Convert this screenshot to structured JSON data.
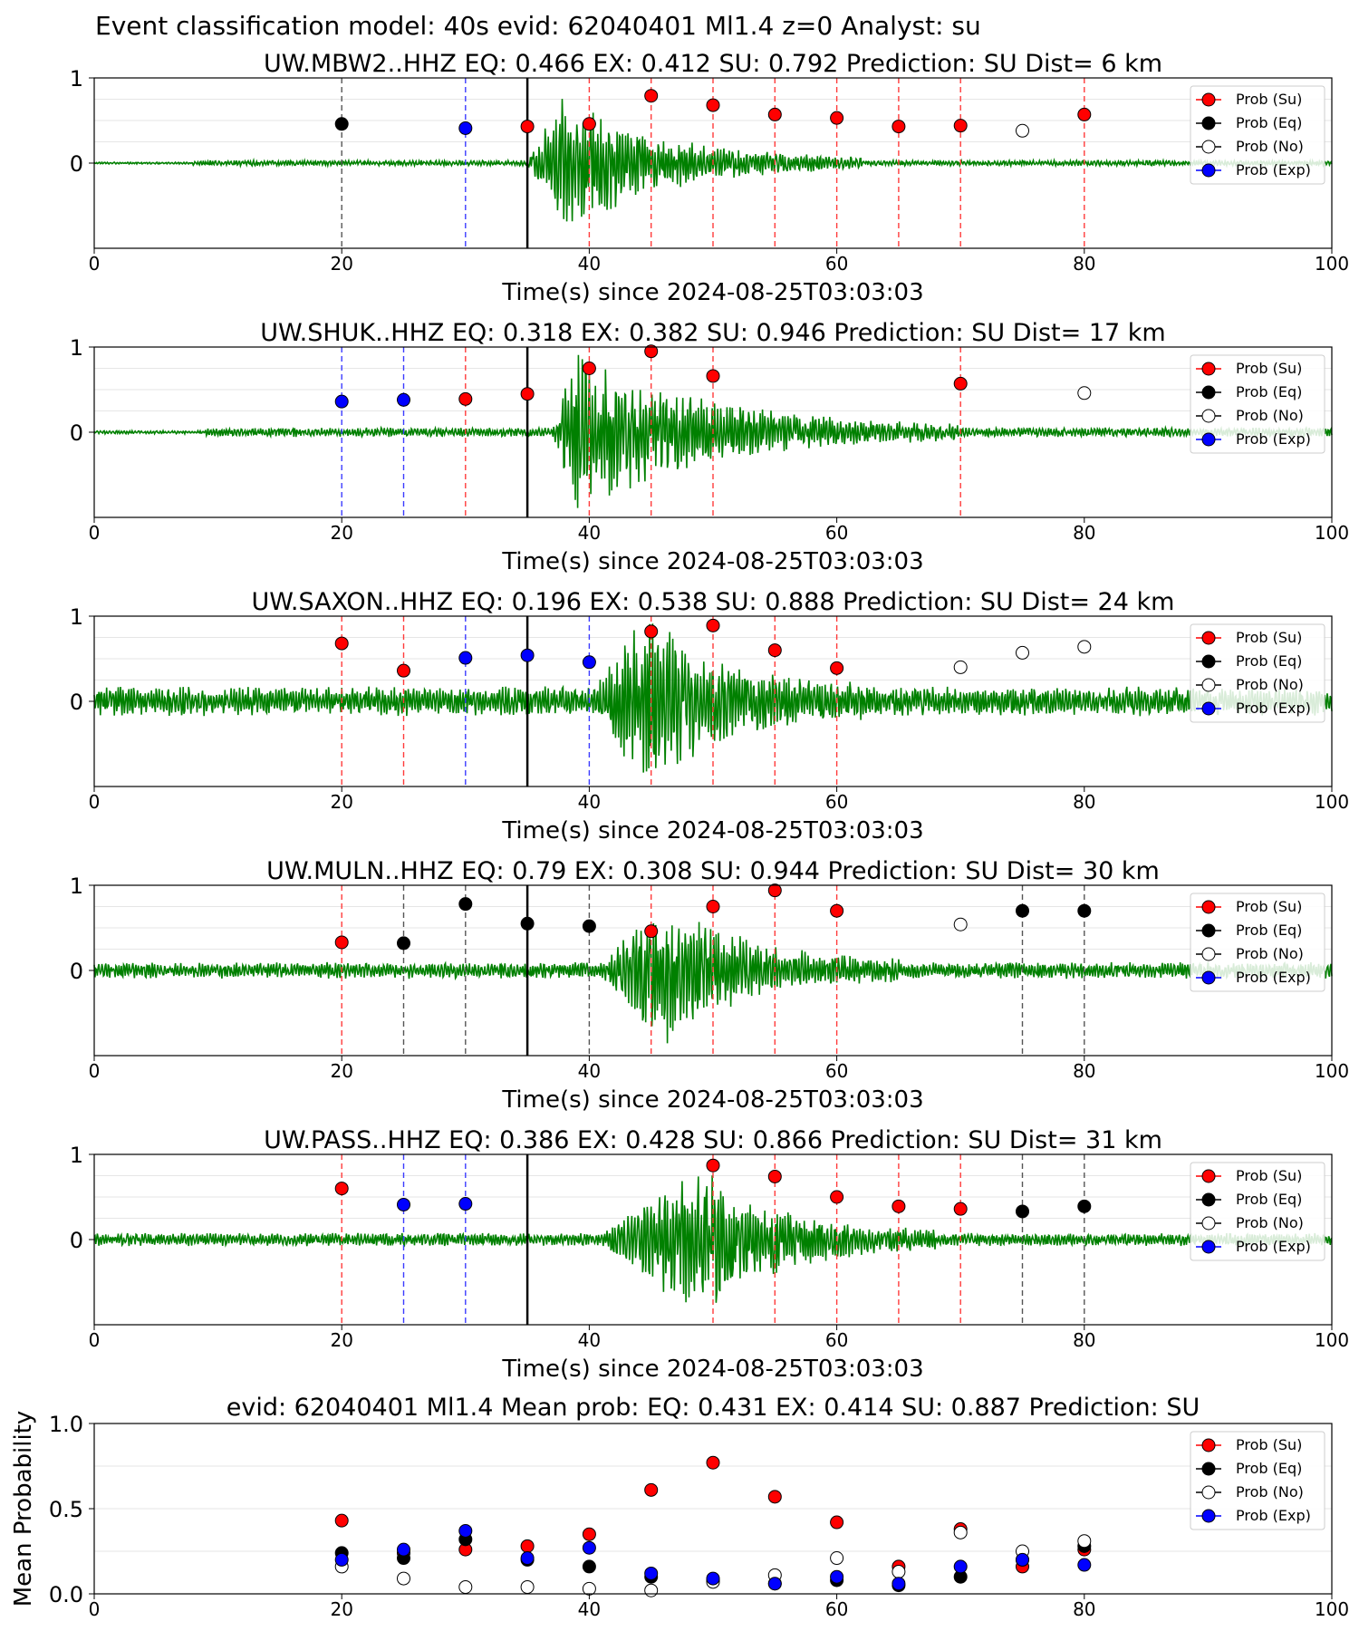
{
  "figure": {
    "suptitle": "Event classification model: 40s evid: 62040401 Ml1.4 z=0 Analyst: su"
  },
  "legend_labels": [
    "Prob (Su)",
    "Prob (Eq)",
    "Prob (No)",
    "Prob (Exp)"
  ],
  "colors": {
    "trace": "#008000",
    "su": "#ff0000",
    "eq": "#000000",
    "no": "#ffffff",
    "exp": "#0000ff",
    "su_line": "#ff3b3b",
    "eq_line": "#555555",
    "exp_line": "#3b3bff"
  },
  "chart_data": [
    {
      "type": "scatter",
      "title": "UW.MBW2..HHZ   EQ: 0.466  EX: 0.412  SU: 0.792   Prediction: SU    Dist= 6 km",
      "xlabel": "Time(s) since 2024-08-25T03:03:03",
      "xlim": [
        0,
        100
      ],
      "ylim": [
        -1,
        1
      ],
      "xticks": [
        "0",
        "20",
        "40",
        "60",
        "80",
        "100"
      ],
      "yticks": [
        "1",
        "0"
      ],
      "origin_time": 35,
      "trace": {
        "noise_start": 8,
        "burst_start": 35,
        "burst_peak": 38,
        "burst_end": 62,
        "noise_amp": 0.03,
        "burst_amp": 0.75,
        "seed": 3
      },
      "points": [
        {
          "t": 20,
          "p": 0.46,
          "cls": "eq"
        },
        {
          "t": 30,
          "p": 0.41,
          "cls": "exp"
        },
        {
          "t": 35,
          "p": 0.43,
          "cls": "su"
        },
        {
          "t": 40,
          "p": 0.46,
          "cls": "su"
        },
        {
          "t": 45,
          "p": 0.79,
          "cls": "su"
        },
        {
          "t": 50,
          "p": 0.68,
          "cls": "su"
        },
        {
          "t": 55,
          "p": 0.57,
          "cls": "su"
        },
        {
          "t": 60,
          "p": 0.53,
          "cls": "su"
        },
        {
          "t": 65,
          "p": 0.43,
          "cls": "su"
        },
        {
          "t": 70,
          "p": 0.44,
          "cls": "su"
        },
        {
          "t": 75,
          "p": 0.38,
          "cls": "no"
        },
        {
          "t": 80,
          "p": 0.57,
          "cls": "su"
        }
      ],
      "vlines": [
        {
          "t": 20,
          "cls": "eq"
        },
        {
          "t": 30,
          "cls": "exp"
        },
        {
          "t": 40,
          "cls": "su"
        },
        {
          "t": 45,
          "cls": "su"
        },
        {
          "t": 50,
          "cls": "su"
        },
        {
          "t": 55,
          "cls": "su"
        },
        {
          "t": 60,
          "cls": "su"
        },
        {
          "t": 65,
          "cls": "su"
        },
        {
          "t": 70,
          "cls": "su"
        },
        {
          "t": 80,
          "cls": "su"
        }
      ],
      "legend": "top-right"
    },
    {
      "type": "scatter",
      "title": "UW.SHUK..HHZ   EQ: 0.318  EX: 0.382  SU: 0.946   Prediction: SU    Dist= 17 km",
      "xlabel": "Time(s) since 2024-08-25T03:03:03",
      "xlim": [
        0,
        100
      ],
      "ylim": [
        -1,
        1
      ],
      "xticks": [
        "0",
        "20",
        "40",
        "60",
        "80",
        "100"
      ],
      "yticks": [
        "1",
        "0"
      ],
      "origin_time": 35,
      "trace": {
        "noise_start": 9,
        "burst_start": 37,
        "burst_peak": 39,
        "burst_end": 70,
        "noise_amp": 0.05,
        "burst_amp": 0.85,
        "seed": 7
      },
      "points": [
        {
          "t": 20,
          "p": 0.36,
          "cls": "exp"
        },
        {
          "t": 25,
          "p": 0.38,
          "cls": "exp"
        },
        {
          "t": 30,
          "p": 0.39,
          "cls": "su"
        },
        {
          "t": 35,
          "p": 0.45,
          "cls": "su"
        },
        {
          "t": 40,
          "p": 0.75,
          "cls": "su"
        },
        {
          "t": 45,
          "p": 0.95,
          "cls": "su"
        },
        {
          "t": 50,
          "p": 0.66,
          "cls": "su"
        },
        {
          "t": 70,
          "p": 0.57,
          "cls": "su"
        },
        {
          "t": 80,
          "p": 0.46,
          "cls": "no"
        }
      ],
      "vlines": [
        {
          "t": 20,
          "cls": "exp"
        },
        {
          "t": 25,
          "cls": "exp"
        },
        {
          "t": 30,
          "cls": "su"
        },
        {
          "t": 40,
          "cls": "su"
        },
        {
          "t": 45,
          "cls": "su"
        },
        {
          "t": 50,
          "cls": "su"
        },
        {
          "t": 70,
          "cls": "su"
        }
      ],
      "legend": "top-right"
    },
    {
      "type": "scatter",
      "title": "UW.SAXON..HHZ   EQ: 0.196  EX: 0.538  SU: 0.888   Prediction: SU    Dist= 24 km",
      "xlabel": "Time(s) since 2024-08-25T03:03:03",
      "xlim": [
        0,
        100
      ],
      "ylim": [
        -1,
        1
      ],
      "xticks": [
        "0",
        "20",
        "40",
        "60",
        "80",
        "100"
      ],
      "yticks": [
        "1",
        "0"
      ],
      "origin_time": 35,
      "trace": {
        "noise_start": 0,
        "burst_start": 40,
        "burst_peak": 45,
        "burst_end": 62,
        "noise_amp": 0.16,
        "burst_amp": 0.85,
        "seed": 11
      },
      "points": [
        {
          "t": 20,
          "p": 0.68,
          "cls": "su"
        },
        {
          "t": 25,
          "p": 0.36,
          "cls": "su"
        },
        {
          "t": 30,
          "p": 0.51,
          "cls": "exp"
        },
        {
          "t": 35,
          "p": 0.54,
          "cls": "exp"
        },
        {
          "t": 40,
          "p": 0.46,
          "cls": "exp"
        },
        {
          "t": 45,
          "p": 0.82,
          "cls": "su"
        },
        {
          "t": 50,
          "p": 0.89,
          "cls": "su"
        },
        {
          "t": 55,
          "p": 0.6,
          "cls": "su"
        },
        {
          "t": 60,
          "p": 0.39,
          "cls": "su"
        },
        {
          "t": 70,
          "p": 0.4,
          "cls": "no"
        },
        {
          "t": 75,
          "p": 0.57,
          "cls": "no"
        },
        {
          "t": 80,
          "p": 0.64,
          "cls": "no"
        }
      ],
      "vlines": [
        {
          "t": 20,
          "cls": "su"
        },
        {
          "t": 25,
          "cls": "su"
        },
        {
          "t": 30,
          "cls": "exp"
        },
        {
          "t": 40,
          "cls": "exp"
        },
        {
          "t": 45,
          "cls": "su"
        },
        {
          "t": 50,
          "cls": "su"
        },
        {
          "t": 55,
          "cls": "su"
        },
        {
          "t": 60,
          "cls": "su"
        }
      ],
      "legend": "top-right"
    },
    {
      "type": "scatter",
      "title": "UW.MULN..HHZ   EQ: 0.79  EX: 0.308  SU: 0.944   Prediction: SU    Dist= 30 km",
      "xlabel": "Time(s) since 2024-08-25T03:03:03",
      "xlim": [
        0,
        100
      ],
      "ylim": [
        -1,
        1
      ],
      "xticks": [
        "0",
        "20",
        "40",
        "60",
        "80",
        "100"
      ],
      "yticks": [
        "1",
        "0"
      ],
      "origin_time": 35,
      "trace": {
        "noise_start": 0,
        "burst_start": 41,
        "burst_peak": 46,
        "burst_end": 65,
        "noise_amp": 0.09,
        "burst_amp": 0.75,
        "seed": 19
      },
      "points": [
        {
          "t": 20,
          "p": 0.33,
          "cls": "su"
        },
        {
          "t": 25,
          "p": 0.32,
          "cls": "eq"
        },
        {
          "t": 30,
          "p": 0.78,
          "cls": "eq"
        },
        {
          "t": 35,
          "p": 0.55,
          "cls": "eq"
        },
        {
          "t": 40,
          "p": 0.52,
          "cls": "eq"
        },
        {
          "t": 45,
          "p": 0.46,
          "cls": "su"
        },
        {
          "t": 50,
          "p": 0.75,
          "cls": "su"
        },
        {
          "t": 55,
          "p": 0.94,
          "cls": "su"
        },
        {
          "t": 60,
          "p": 0.7,
          "cls": "su"
        },
        {
          "t": 70,
          "p": 0.54,
          "cls": "no"
        },
        {
          "t": 75,
          "p": 0.7,
          "cls": "eq"
        },
        {
          "t": 80,
          "p": 0.7,
          "cls": "eq"
        }
      ],
      "vlines": [
        {
          "t": 20,
          "cls": "su"
        },
        {
          "t": 25,
          "cls": "eq"
        },
        {
          "t": 30,
          "cls": "eq"
        },
        {
          "t": 40,
          "cls": "eq"
        },
        {
          "t": 45,
          "cls": "su"
        },
        {
          "t": 50,
          "cls": "su"
        },
        {
          "t": 55,
          "cls": "su"
        },
        {
          "t": 60,
          "cls": "su"
        },
        {
          "t": 75,
          "cls": "eq"
        },
        {
          "t": 80,
          "cls": "eq"
        }
      ],
      "legend": "top-right"
    },
    {
      "type": "scatter",
      "title": "UW.PASS..HHZ   EQ: 0.386  EX: 0.428  SU: 0.866   Prediction: SU    Dist= 31 km",
      "xlabel": "Time(s) since 2024-08-25T03:03:03",
      "xlim": [
        0,
        100
      ],
      "ylim": [
        -1,
        1
      ],
      "xticks": [
        "0",
        "20",
        "40",
        "60",
        "80",
        "100"
      ],
      "yticks": [
        "1",
        "0"
      ],
      "origin_time": 35,
      "trace": {
        "noise_start": 0,
        "burst_start": 41,
        "burst_peak": 49,
        "burst_end": 68,
        "noise_amp": 0.07,
        "burst_amp": 0.8,
        "seed": 23
      },
      "points": [
        {
          "t": 20,
          "p": 0.6,
          "cls": "su"
        },
        {
          "t": 25,
          "p": 0.41,
          "cls": "exp"
        },
        {
          "t": 30,
          "p": 0.42,
          "cls": "exp"
        },
        {
          "t": 50,
          "p": 0.87,
          "cls": "su"
        },
        {
          "t": 55,
          "p": 0.74,
          "cls": "su"
        },
        {
          "t": 60,
          "p": 0.5,
          "cls": "su"
        },
        {
          "t": 65,
          "p": 0.39,
          "cls": "su"
        },
        {
          "t": 70,
          "p": 0.36,
          "cls": "su"
        },
        {
          "t": 75,
          "p": 0.33,
          "cls": "eq"
        },
        {
          "t": 80,
          "p": 0.39,
          "cls": "eq"
        }
      ],
      "vlines": [
        {
          "t": 20,
          "cls": "su"
        },
        {
          "t": 25,
          "cls": "exp"
        },
        {
          "t": 30,
          "cls": "exp"
        },
        {
          "t": 50,
          "cls": "su"
        },
        {
          "t": 55,
          "cls": "su"
        },
        {
          "t": 60,
          "cls": "su"
        },
        {
          "t": 65,
          "cls": "su"
        },
        {
          "t": 70,
          "cls": "su"
        },
        {
          "t": 75,
          "cls": "eq"
        },
        {
          "t": 80,
          "cls": "eq"
        }
      ],
      "legend": "top-right"
    },
    {
      "type": "scatter",
      "title": "evid: 62040401   Ml1.4    Mean prob:    EQ: 0.431   EX: 0.414   SU: 0.887    Prediction: SU",
      "xlabel": "",
      "ylabel": "Mean Probability",
      "xlim": [
        0,
        100
      ],
      "ylim": [
        0,
        1
      ],
      "xticks": [
        "0",
        "20",
        "40",
        "60",
        "80",
        "100"
      ],
      "yticks": [
        "1.0",
        "0.5",
        "0.0"
      ],
      "x": [
        20,
        25,
        30,
        35,
        40,
        45,
        50,
        55,
        60,
        65,
        70,
        75,
        80
      ],
      "series": [
        {
          "name": "Prob (Su)",
          "cls": "su",
          "values": [
            0.43,
            0.24,
            0.26,
            0.28,
            0.35,
            0.61,
            0.77,
            0.57,
            0.42,
            0.16,
            0.38,
            0.16,
            0.26
          ]
        },
        {
          "name": "Prob (Eq)",
          "cls": "eq",
          "values": [
            0.24,
            0.21,
            0.32,
            0.2,
            0.16,
            0.1,
            0.08,
            0.06,
            0.08,
            0.05,
            0.1,
            0.2,
            0.28
          ]
        },
        {
          "name": "Prob (No)",
          "cls": "no",
          "values": [
            0.16,
            0.09,
            0.04,
            0.04,
            0.03,
            0.02,
            0.07,
            0.11,
            0.21,
            0.13,
            0.36,
            0.25,
            0.31
          ]
        },
        {
          "name": "Prob (Exp)",
          "cls": "exp",
          "values": [
            0.2,
            0.26,
            0.37,
            0.21,
            0.27,
            0.12,
            0.09,
            0.06,
            0.1,
            0.06,
            0.16,
            0.2,
            0.17
          ]
        }
      ],
      "legend": "top-right"
    }
  ]
}
